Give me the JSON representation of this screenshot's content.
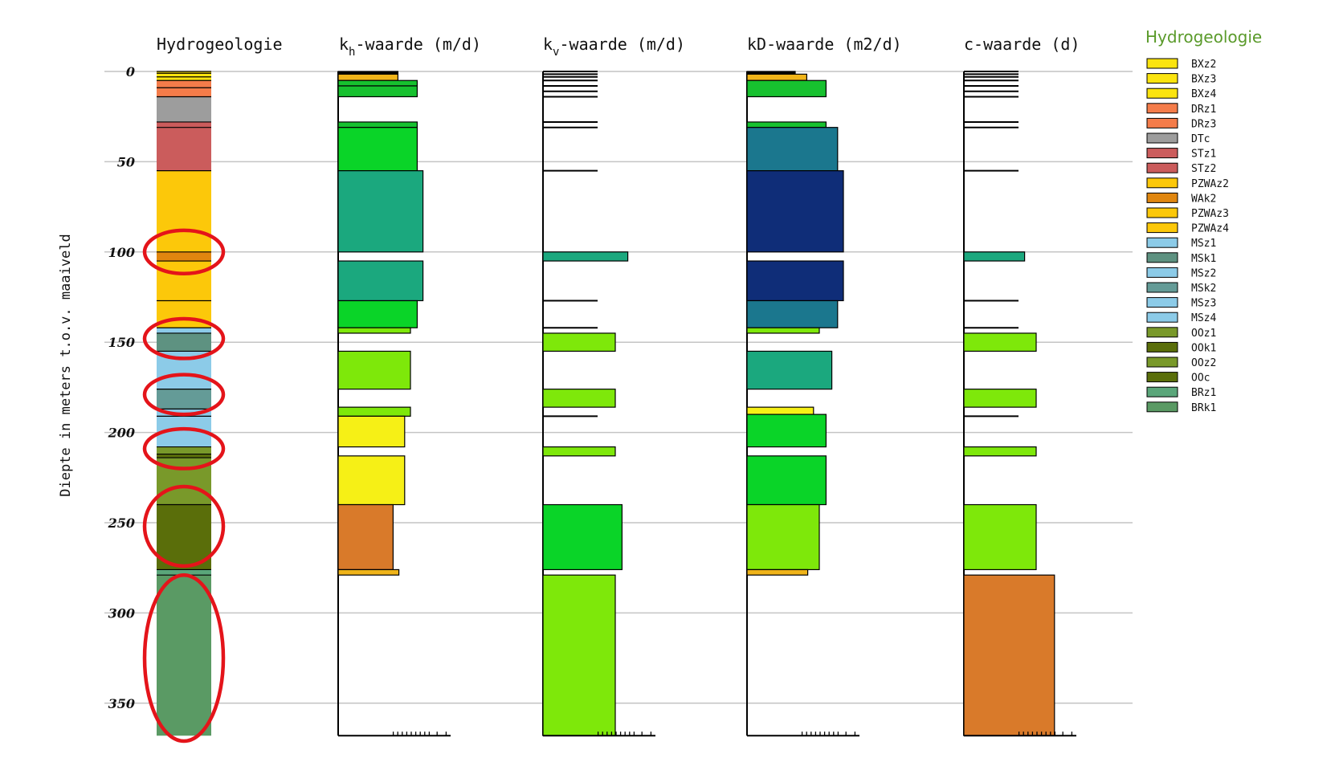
{
  "chart_data": {
    "type": "bar",
    "ylabel": "Diepte in meters t.o.v. maaiveld",
    "yticks": [
      "0",
      "50",
      "100",
      "150",
      "200",
      "250",
      "300",
      "350"
    ],
    "ytick_values": [
      0,
      50,
      100,
      150,
      200,
      250,
      300,
      350
    ],
    "ylim": [
      0,
      368
    ],
    "columns": [
      {
        "key": "hydro",
        "title": "Hydrogeologie",
        "sub": ""
      },
      {
        "key": "kh",
        "title_pre": "k",
        "sub": "h",
        "title_post": "-waarde (m/d)"
      },
      {
        "key": "kv",
        "title_pre": "k",
        "sub": "v",
        "title_post": "-waarde (m/d)"
      },
      {
        "key": "kd",
        "title_pre": "kD-waarde (m2/d)",
        "sub": "",
        "title_post": ""
      },
      {
        "key": "c",
        "title_pre": "c-waarde (d)",
        "sub": "",
        "title_post": ""
      }
    ],
    "hydro_layers": [
      {
        "unit": "BXz2",
        "top": 0,
        "bottom": 1
      },
      {
        "unit": "BXz3",
        "top": 1,
        "bottom": 3
      },
      {
        "unit": "BXz4",
        "top": 3,
        "bottom": 5
      },
      {
        "unit": "DRz1",
        "top": 5,
        "bottom": 9
      },
      {
        "unit": "DRz3",
        "top": 9,
        "bottom": 14
      },
      {
        "unit": "DTc",
        "top": 14,
        "bottom": 28
      },
      {
        "unit": "STz1",
        "top": 28,
        "bottom": 31
      },
      {
        "unit": "STz2",
        "top": 31,
        "bottom": 55
      },
      {
        "unit": "PZWAz2",
        "top": 55,
        "bottom": 100
      },
      {
        "unit": "WAk2",
        "top": 100,
        "bottom": 105
      },
      {
        "unit": "PZWAz3",
        "top": 105,
        "bottom": 127
      },
      {
        "unit": "PZWAz4",
        "top": 127,
        "bottom": 142
      },
      {
        "unit": "MSz1",
        "top": 142,
        "bottom": 145
      },
      {
        "unit": "MSk1",
        "top": 145,
        "bottom": 155
      },
      {
        "unit": "MSz2",
        "top": 155,
        "bottom": 176
      },
      {
        "unit": "MSk2",
        "top": 176,
        "bottom": 187
      },
      {
        "unit": "MSz3",
        "top": 187,
        "bottom": 191
      },
      {
        "unit": "MSz4",
        "top": 191,
        "bottom": 208
      },
      {
        "unit": "OOz1",
        "top": 208,
        "bottom": 212
      },
      {
        "unit": "OOk1",
        "top": 212,
        "bottom": 214
      },
      {
        "unit": "OOz2",
        "top": 214,
        "bottom": 240
      },
      {
        "unit": "OOc",
        "top": 240,
        "bottom": 276
      },
      {
        "unit": "BRz1",
        "top": 276,
        "bottom": 279
      },
      {
        "unit": "BRk1",
        "top": 279,
        "bottom": 368
      }
    ],
    "kh_bars": [
      {
        "top": 0,
        "bottom": 1.5,
        "value": 0.62,
        "color": "#000000"
      },
      {
        "top": 1.5,
        "bottom": 5,
        "value": 0.62,
        "color": "#f0b419"
      },
      {
        "top": 5,
        "bottom": 8,
        "value": 0.82,
        "color": "#17c12f"
      },
      {
        "top": 8,
        "bottom": 14,
        "value": 0.82,
        "color": "#17c12f"
      },
      {
        "top": 14,
        "bottom": 28,
        "value": 0.0,
        "color": "#ffffff"
      },
      {
        "top": 28,
        "bottom": 31,
        "value": 0.82,
        "color": "#17c12f"
      },
      {
        "top": 31,
        "bottom": 55,
        "value": 0.82,
        "color": "#0ad428"
      },
      {
        "top": 55,
        "bottom": 100,
        "value": 0.88,
        "color": "#1ba87e"
      },
      {
        "top": 100,
        "bottom": 105,
        "value": 0.0,
        "color": "#ffffff"
      },
      {
        "top": 105,
        "bottom": 127,
        "value": 0.88,
        "color": "#1ba87e"
      },
      {
        "top": 127,
        "bottom": 142,
        "value": 0.82,
        "color": "#0ad428"
      },
      {
        "top": 142,
        "bottom": 145,
        "value": 0.75,
        "color": "#7ee80a"
      },
      {
        "top": 145,
        "bottom": 155,
        "value": 0.0,
        "color": "#ffffff"
      },
      {
        "top": 155,
        "bottom": 176,
        "value": 0.75,
        "color": "#7ee80a"
      },
      {
        "top": 176,
        "bottom": 186,
        "value": 0.0,
        "color": "#ffffff"
      },
      {
        "top": 186,
        "bottom": 191,
        "value": 0.75,
        "color": "#7ee80a"
      },
      {
        "top": 191,
        "bottom": 208,
        "value": 0.69,
        "color": "#f6f016"
      },
      {
        "top": 208,
        "bottom": 213,
        "value": 0.0,
        "color": "#ffffff"
      },
      {
        "top": 213,
        "bottom": 240,
        "value": 0.69,
        "color": "#f6f016"
      },
      {
        "top": 240,
        "bottom": 276,
        "value": 0.57,
        "color": "#d97a2a"
      },
      {
        "top": 276,
        "bottom": 279,
        "value": 0.63,
        "color": "#f0b419"
      },
      {
        "top": 279,
        "bottom": 368,
        "value": 0.0,
        "color": "#ffffff"
      }
    ],
    "kv_bars": [
      {
        "top": 100,
        "bottom": 105,
        "value": 0.88,
        "color": "#1ba87e"
      },
      {
        "top": 145,
        "bottom": 155,
        "value": 0.75,
        "color": "#7ee80a"
      },
      {
        "top": 176,
        "bottom": 186,
        "value": 0.75,
        "color": "#7ee80a"
      },
      {
        "top": 208,
        "bottom": 213,
        "value": 0.75,
        "color": "#7ee80a"
      },
      {
        "top": 240,
        "bottom": 276,
        "value": 0.82,
        "color": "#0ad428"
      },
      {
        "top": 279,
        "bottom": 368,
        "value": 0.75,
        "color": "#7ee80a"
      }
    ],
    "kv_lines": [
      0,
      1.5,
      3,
      5,
      8,
      11,
      14,
      28,
      31,
      55,
      127,
      142,
      191
    ],
    "kd_bars": [
      {
        "top": 0,
        "bottom": 1.5,
        "value": 0.5,
        "color": "#000000"
      },
      {
        "top": 1.5,
        "bottom": 5,
        "value": 0.62,
        "color": "#f0b419"
      },
      {
        "top": 5,
        "bottom": 14,
        "value": 0.82,
        "color": "#17c12f"
      },
      {
        "top": 14,
        "bottom": 28,
        "value": 0.0,
        "color": "#ffffff"
      },
      {
        "top": 28,
        "bottom": 31,
        "value": 0.82,
        "color": "#17c12f"
      },
      {
        "top": 31,
        "bottom": 55,
        "value": 0.94,
        "color": "#1b778e"
      },
      {
        "top": 55,
        "bottom": 100,
        "value": 1.0,
        "color": "#0f2d78"
      },
      {
        "top": 100,
        "bottom": 105,
        "value": 0.0,
        "color": "#ffffff"
      },
      {
        "top": 105,
        "bottom": 127,
        "value": 1.0,
        "color": "#0f2d78"
      },
      {
        "top": 127,
        "bottom": 142,
        "value": 0.94,
        "color": "#1b778e"
      },
      {
        "top": 142,
        "bottom": 145,
        "value": 0.75,
        "color": "#7ee80a"
      },
      {
        "top": 145,
        "bottom": 155,
        "value": 0.0,
        "color": "#ffffff"
      },
      {
        "top": 155,
        "bottom": 176,
        "value": 0.88,
        "color": "#1ba87e"
      },
      {
        "top": 176,
        "bottom": 186,
        "value": 0.0,
        "color": "#ffffff"
      },
      {
        "top": 186,
        "bottom": 190,
        "value": 0.69,
        "color": "#f6f016"
      },
      {
        "top": 190,
        "bottom": 208,
        "value": 0.82,
        "color": "#0ad428"
      },
      {
        "top": 208,
        "bottom": 213,
        "value": 0.0,
        "color": "#ffffff"
      },
      {
        "top": 213,
        "bottom": 240,
        "value": 0.82,
        "color": "#0ad428"
      },
      {
        "top": 240,
        "bottom": 276,
        "value": 0.75,
        "color": "#7ee80a"
      },
      {
        "top": 276,
        "bottom": 279,
        "value": 0.63,
        "color": "#f0b419"
      },
      {
        "top": 279,
        "bottom": 368,
        "value": 0.0,
        "color": "#ffffff"
      }
    ],
    "c_bars": [
      {
        "top": 100,
        "bottom": 105,
        "value": 0.63,
        "color": "#1ba87e"
      },
      {
        "top": 145,
        "bottom": 155,
        "value": 0.75,
        "color": "#7ee80a"
      },
      {
        "top": 176,
        "bottom": 186,
        "value": 0.75,
        "color": "#7ee80a"
      },
      {
        "top": 208,
        "bottom": 213,
        "value": 0.75,
        "color": "#7ee80a"
      },
      {
        "top": 240,
        "bottom": 276,
        "value": 0.75,
        "color": "#7ee80a"
      },
      {
        "top": 279,
        "bottom": 368,
        "value": 0.94,
        "color": "#d97a2a"
      }
    ],
    "c_lines": [
      0,
      1.5,
      3,
      5,
      8,
      11,
      14,
      28,
      31,
      55,
      127,
      142,
      191
    ],
    "highlights": [
      {
        "center": 100,
        "halfheight": 12
      },
      {
        "center": 148,
        "halfheight": 11
      },
      {
        "center": 179,
        "halfheight": 11
      },
      {
        "center": 209,
        "halfheight": 11
      },
      {
        "center": 252,
        "halfheight": 22
      },
      {
        "center": 325,
        "halfheight": 46
      }
    ]
  },
  "legend": {
    "title": "Hydrogeologie",
    "items": [
      {
        "label": "BXz2",
        "color": "#fbe40f"
      },
      {
        "label": "BXz3",
        "color": "#fbe40f"
      },
      {
        "label": "BXz4",
        "color": "#fbe40f"
      },
      {
        "label": "DRz1",
        "color": "#f47c4a"
      },
      {
        "label": "DRz3",
        "color": "#f47c4a"
      },
      {
        "label": "DTc",
        "color": "#9d9d9d"
      },
      {
        "label": "STz1",
        "color": "#cb5c5c"
      },
      {
        "label": "STz2",
        "color": "#cb5c5c"
      },
      {
        "label": "PZWAz2",
        "color": "#fcc80a"
      },
      {
        "label": "WAk2",
        "color": "#e0860f"
      },
      {
        "label": "PZWAz3",
        "color": "#fcc80a"
      },
      {
        "label": "PZWAz4",
        "color": "#fcc80a"
      },
      {
        "label": "MSz1",
        "color": "#8ccbe8"
      },
      {
        "label": "MSk1",
        "color": "#5e9281"
      },
      {
        "label": "MSz2",
        "color": "#8ccbe8"
      },
      {
        "label": "MSk2",
        "color": "#649b97"
      },
      {
        "label": "MSz3",
        "color": "#8ccbe8"
      },
      {
        "label": "MSz4",
        "color": "#8ccbe8"
      },
      {
        "label": "OOz1",
        "color": "#79992a"
      },
      {
        "label": "OOk1",
        "color": "#5a6e0a"
      },
      {
        "label": "OOz2",
        "color": "#79992a"
      },
      {
        "label": "OOc",
        "color": "#5a6e0a"
      },
      {
        "label": "BRz1",
        "color": "#5aa67a"
      },
      {
        "label": "BRk1",
        "color": "#5a9a64"
      }
    ]
  }
}
